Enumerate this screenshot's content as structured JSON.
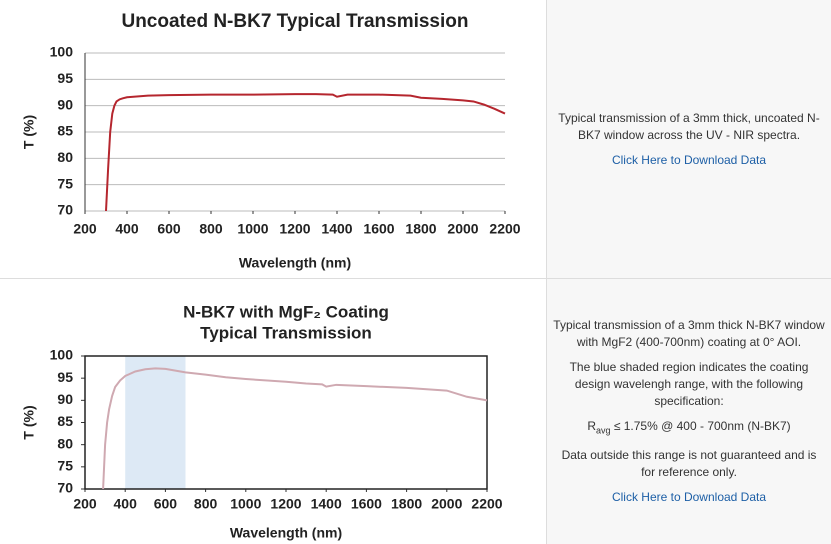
{
  "chart_data": [
    {
      "type": "line",
      "title": "Uncoated N-BK7 Typical Transmission",
      "x_label": "Wavelength (nm)",
      "y_label": "T (%)",
      "xlim": [
        200,
        2200
      ],
      "xticks": [
        200,
        400,
        600,
        800,
        1000,
        1200,
        1400,
        1600,
        1800,
        2000,
        2200
      ],
      "ylim": [
        70,
        100
      ],
      "yticks": [
        70,
        75,
        80,
        85,
        90,
        95,
        100
      ],
      "grid": true,
      "series": [
        {
          "color": "#b5262e",
          "x": [
            300,
            310,
            320,
            330,
            340,
            350,
            365,
            380,
            400,
            500,
            600,
            800,
            1000,
            1200,
            1300,
            1380,
            1400,
            1450,
            1600,
            1750,
            1800,
            1900,
            2000,
            2050,
            2100,
            2150,
            2200
          ],
          "values": [
            70,
            78,
            85,
            88.5,
            90,
            90.8,
            91.2,
            91.4,
            91.6,
            91.9,
            92.0,
            92.1,
            92.1,
            92.2,
            92.2,
            92.1,
            91.7,
            92.1,
            92.1,
            91.9,
            91.5,
            91.3,
            91.0,
            90.8,
            90.2,
            89.4,
            88.5
          ]
        }
      ]
    },
    {
      "type": "line",
      "title": [
        "N-BK7 with MgF₂ Coating",
        "Typical Transmission"
      ],
      "x_label": "Wavelength (nm)",
      "y_label": "T (%)",
      "xlim": [
        200,
        2200
      ],
      "xticks": [
        200,
        400,
        600,
        800,
        1000,
        1200,
        1400,
        1600,
        1800,
        2000,
        2200
      ],
      "ylim": [
        70,
        100
      ],
      "yticks": [
        70,
        75,
        80,
        85,
        90,
        95,
        100
      ],
      "grid": false,
      "shaded_range": [
        400,
        700
      ],
      "shade_color": "#dde9f5",
      "series": [
        {
          "color": "#cfa9b1",
          "x": [
            290,
            300,
            310,
            320,
            335,
            350,
            375,
            400,
            450,
            500,
            550,
            600,
            700,
            800,
            900,
            1000,
            1200,
            1300,
            1380,
            1400,
            1450,
            1600,
            1800,
            2000,
            2100,
            2200
          ],
          "values": [
            70,
            80,
            85,
            88,
            91,
            93,
            94.5,
            95.5,
            96.5,
            97,
            97.2,
            97.1,
            96.3,
            95.8,
            95.2,
            94.8,
            94.2,
            93.8,
            93.6,
            93.1,
            93.5,
            93.2,
            92.8,
            92.2,
            90.8,
            90.0
          ]
        }
      ]
    }
  ],
  "descriptions": [
    {
      "paragraphs": [
        "Typical transmission of a 3mm thick, uncoated N-BK7 window across the UV - NIR spectra."
      ],
      "link": "Click Here to Download Data"
    },
    {
      "paragraphs": [
        "Typical transmission of a 3mm thick N-BK7 window with MgF2 (400-700nm) coating at 0° AOI.",
        "The blue shaded region indicates the coating design wavelengh range, with the following specification:"
      ],
      "spec": [
        "R",
        "avg",
        " ≤ 1.75% @ 400 - 700nm (N-BK7)"
      ],
      "note": "Data outside this range is not guaranteed and is for reference only.",
      "link": "Click Here to Download Data"
    }
  ]
}
